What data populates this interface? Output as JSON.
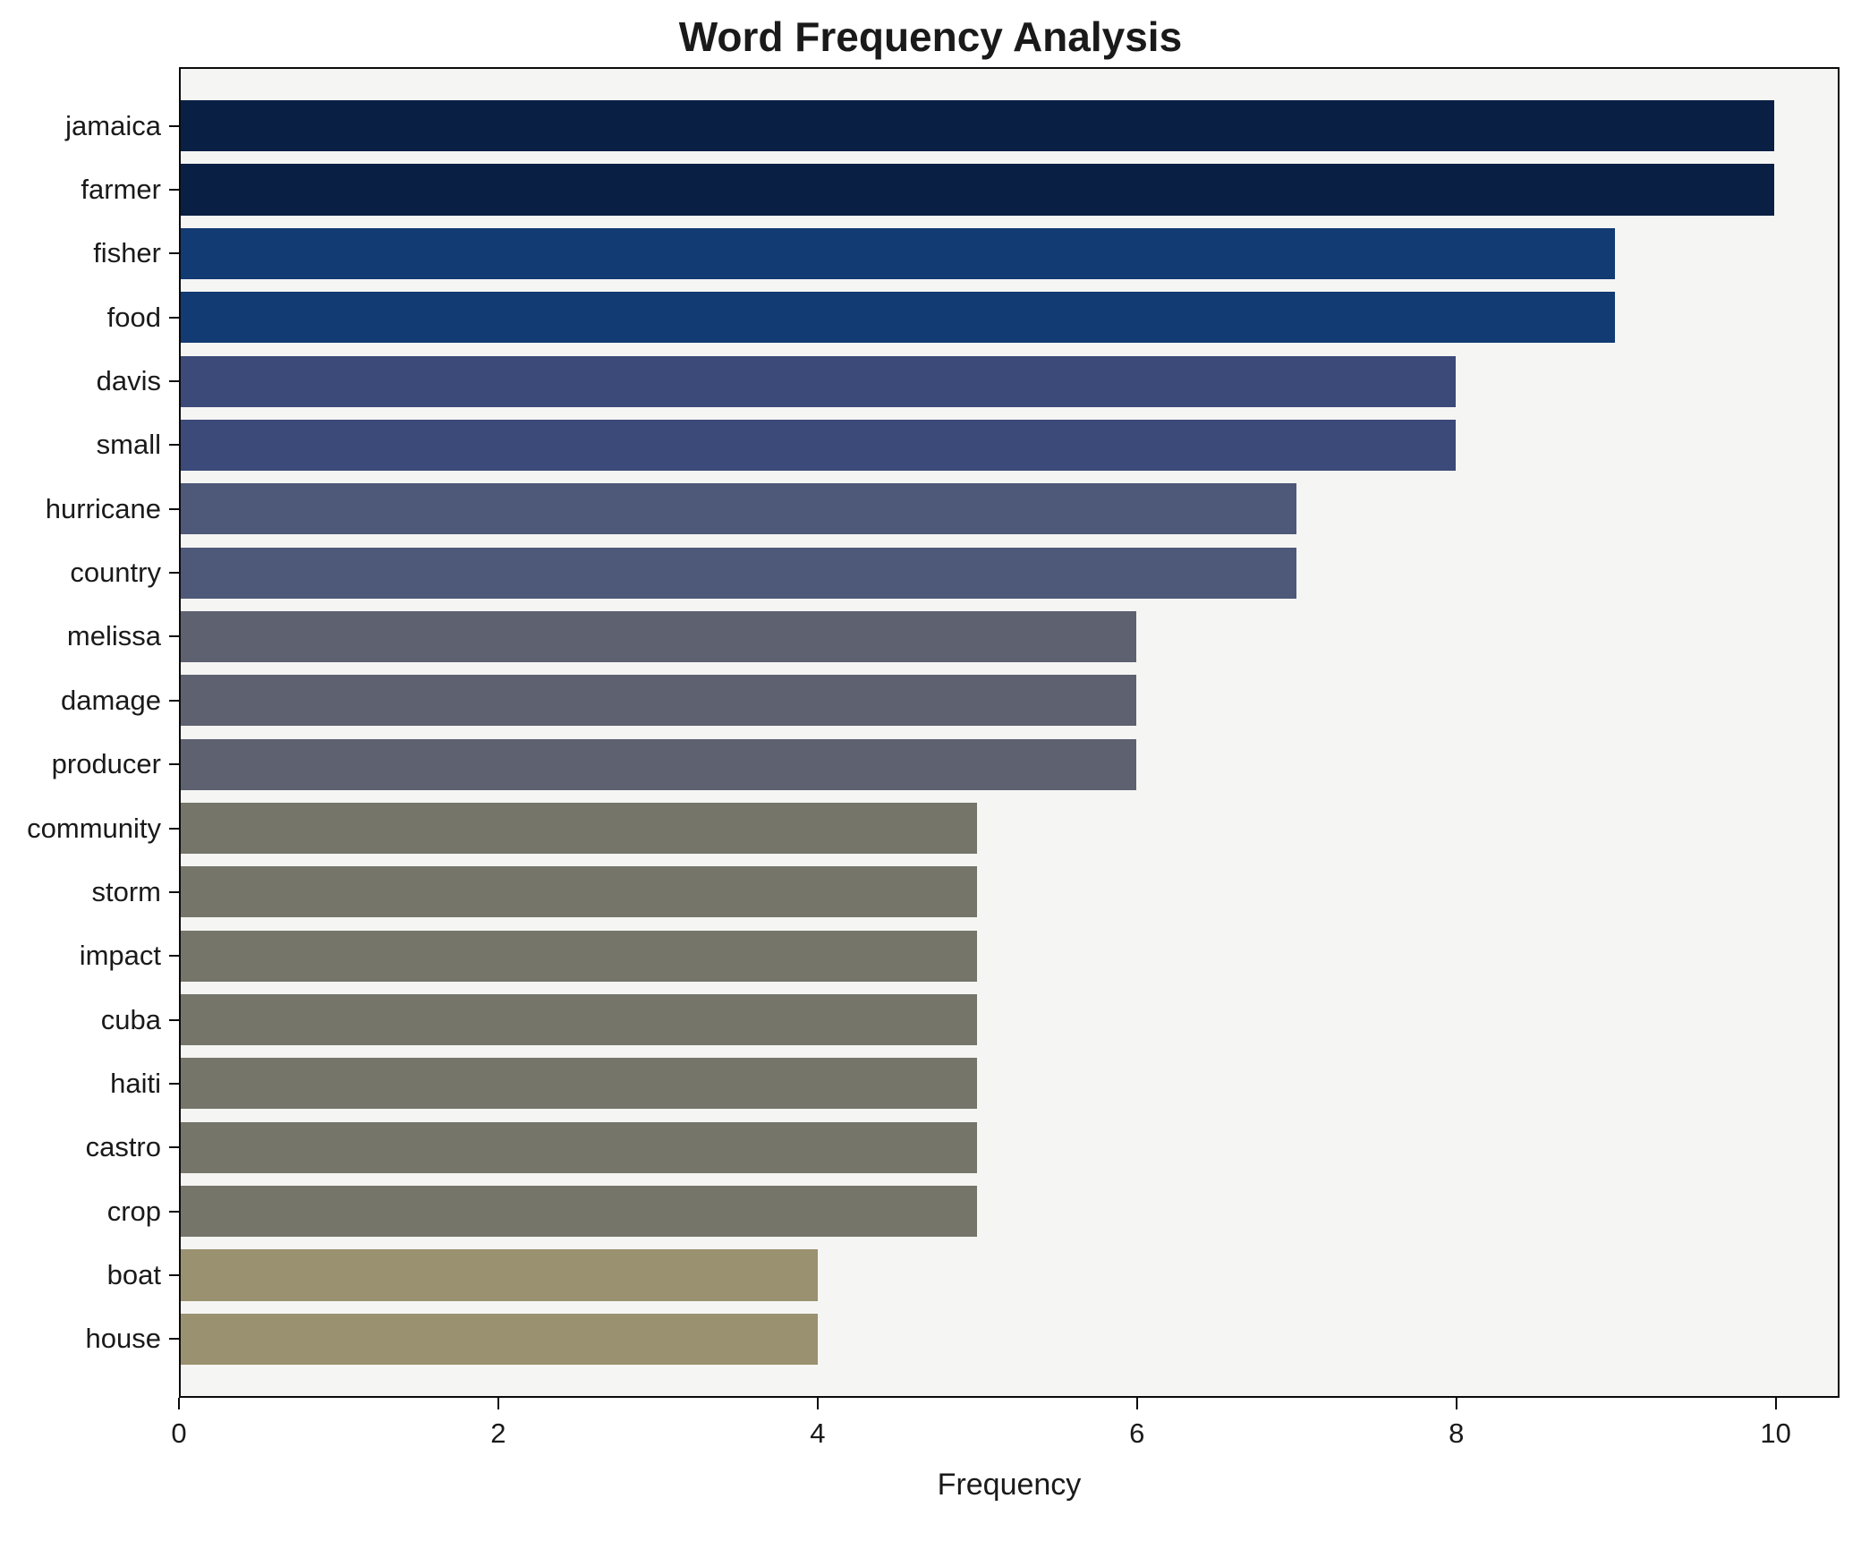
{
  "chart_data": {
    "type": "bar",
    "orientation": "horizontal",
    "title": "Word Frequency Analysis",
    "xlabel": "Frequency",
    "ylabel": "",
    "xlim": [
      0,
      10.4
    ],
    "xticks": [
      0,
      2,
      4,
      6,
      8,
      10
    ],
    "grid": false,
    "legend_position": "none",
    "plot_background": "#f5f5f3",
    "figure_background": "#ffffff",
    "categories": [
      "jamaica",
      "farmer",
      "fisher",
      "food",
      "davis",
      "small",
      "hurricane",
      "country",
      "melissa",
      "damage",
      "producer",
      "community",
      "storm",
      "impact",
      "cuba",
      "haiti",
      "castro",
      "crop",
      "boat",
      "house"
    ],
    "values": [
      10,
      10,
      9,
      9,
      8,
      8,
      7,
      7,
      6,
      6,
      6,
      5,
      5,
      5,
      5,
      5,
      5,
      5,
      4,
      4
    ],
    "bar_colors": [
      "#0a1f44",
      "#0a1f44",
      "#123a73",
      "#123a73",
      "#3c4a79",
      "#3c4a79",
      "#4e5878",
      "#4e5878",
      "#5d6170",
      "#5d6170",
      "#5d6170",
      "#76756a",
      "#76756a",
      "#76756a",
      "#76756a",
      "#76756a",
      "#76756a",
      "#76756a",
      "#9a9170",
      "#9a9170"
    ]
  }
}
